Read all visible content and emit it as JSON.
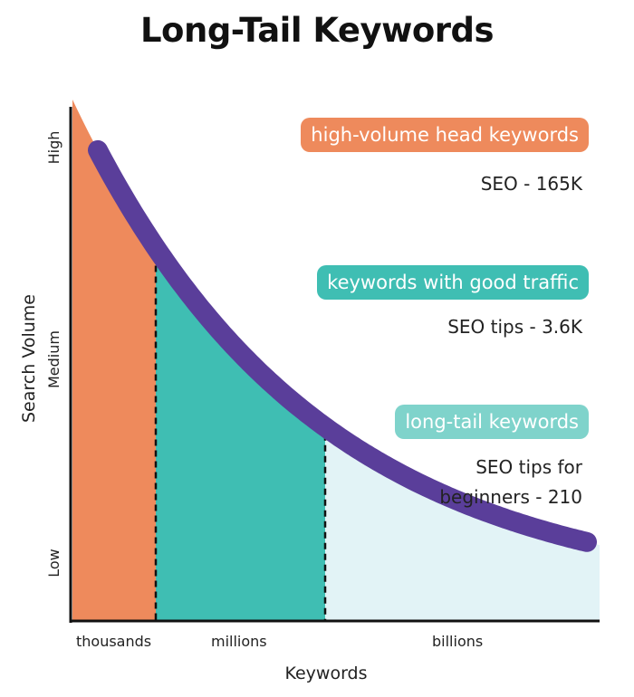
{
  "chart_data": {
    "type": "area",
    "title": "Long-Tail Keywords",
    "xlabel": "Keywords",
    "ylabel": "Search Volume",
    "x_tick_labels": [
      "thousands",
      "millions",
      "billions"
    ],
    "y_tick_labels": [
      "Low",
      "Medium",
      "High"
    ],
    "regions": [
      {
        "category": "thousands",
        "color": "#EE8A5C"
      },
      {
        "category": "millions",
        "color": "#3FBEB3"
      },
      {
        "category": "billions",
        "color": "#E2F3F6"
      }
    ],
    "curve_color": "#5A3E9A",
    "annotations": [
      {
        "label": "high-volume head keywords",
        "example": "SEO - 165K",
        "color": "#EE8A5C"
      },
      {
        "label": "keywords with good traffic",
        "example": "SEO tips - 3.6K",
        "color": "#3FBEB3"
      },
      {
        "label": "long-tail keywords",
        "example_lines": [
          "SEO tips for",
          "beginners - 210"
        ],
        "color": "#7FD3CB"
      }
    ]
  }
}
